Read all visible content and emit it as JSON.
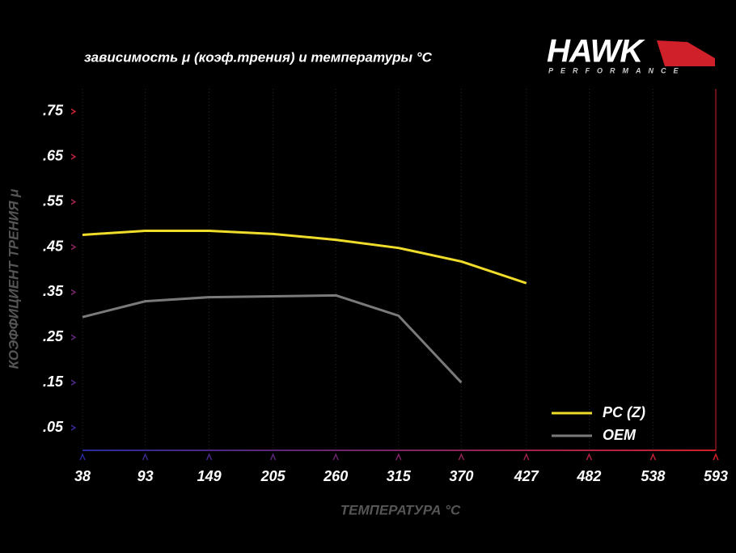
{
  "chart_data": {
    "type": "line",
    "title": "зависимость μ (коэф.трения) и температуры °C",
    "brand": "HAWK",
    "brand_subtitle": "PERFORMANCE",
    "x_label": "ТЕМПЕРАТУРА °C",
    "y_label": "КОЭФФИЦИЕНТ ТРЕНИЯ μ",
    "x": [
      38,
      93,
      149,
      205,
      260,
      315,
      370,
      427
    ],
    "series": [
      {
        "name": "PC (Z)",
        "color": "#f0dc2a",
        "values": [
          0.477,
          0.486,
          0.486,
          0.479,
          0.466,
          0.448,
          0.418,
          0.37
        ]
      },
      {
        "name": "OEM",
        "color": "#7a7a7a",
        "values": [
          0.295,
          0.33,
          0.339,
          0.341,
          0.343,
          0.298,
          0.15,
          null
        ]
      }
    ],
    "xlim": [
      38,
      593
    ],
    "xticks": [
      38,
      93,
      149,
      205,
      260,
      315,
      370,
      427,
      482,
      538,
      593
    ],
    "ylim": [
      0,
      0.8
    ],
    "yticks": [
      {
        "value": 0.05,
        "label": ".05"
      },
      {
        "value": 0.15,
        "label": ".15"
      },
      {
        "value": 0.25,
        "label": ".25"
      },
      {
        "value": 0.35,
        "label": ".35"
      },
      {
        "value": 0.45,
        "label": ".45"
      },
      {
        "value": 0.55,
        "label": ".55"
      },
      {
        "value": 0.65,
        "label": ".65"
      },
      {
        "value": 0.75,
        "label": ".75"
      }
    ],
    "grid": true,
    "legend": "lower right"
  }
}
